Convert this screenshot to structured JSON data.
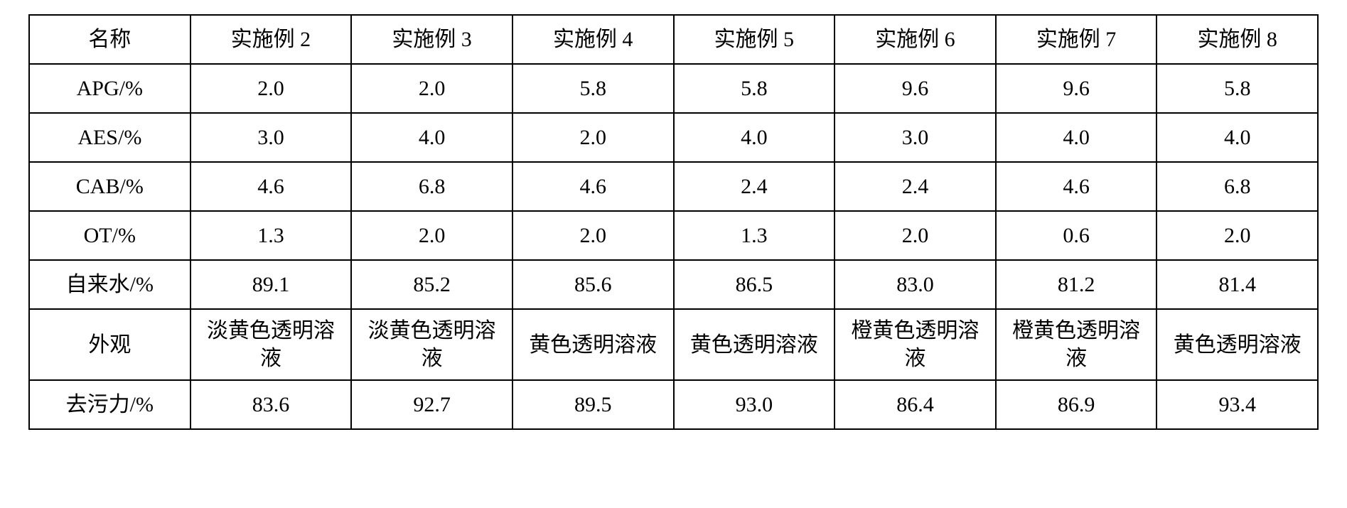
{
  "table": {
    "type": "table",
    "background_color": "#ffffff",
    "border_color": "#000000",
    "border_width": 2,
    "font_family": "SimSun",
    "font_size_pt": 22,
    "text_color": "#000000",
    "cell_align": "center",
    "column_count": 8,
    "columns": [
      "名称",
      "实施例 2",
      "实施例 3",
      "实施例 4",
      "实施例 5",
      "实施例 6",
      "实施例 7",
      "实施例 8"
    ],
    "rows": [
      {
        "label": "APG/%",
        "values": [
          "2.0",
          "2.0",
          "5.8",
          "5.8",
          "9.6",
          "9.6",
          "5.8"
        ]
      },
      {
        "label": "AES/%",
        "values": [
          "3.0",
          "4.0",
          "2.0",
          "4.0",
          "3.0",
          "4.0",
          "4.0"
        ]
      },
      {
        "label": "CAB/%",
        "values": [
          "4.6",
          "6.8",
          "4.6",
          "2.4",
          "2.4",
          "4.6",
          "6.8"
        ]
      },
      {
        "label": "OT/%",
        "values": [
          "1.3",
          "2.0",
          "2.0",
          "1.3",
          "2.0",
          "0.6",
          "2.0"
        ]
      },
      {
        "label": "自来水/%",
        "values": [
          "89.1",
          "85.2",
          "85.6",
          "86.5",
          "83.0",
          "81.2",
          "81.4"
        ]
      },
      {
        "label": "外观",
        "values": [
          "淡黄色透明溶液",
          "淡黄色透明溶液",
          "黄色透明溶液",
          "黄色透明溶液",
          "橙黄色透明溶液",
          "橙黄色透明溶液",
          "黄色透明溶液"
        ],
        "wrap": true
      },
      {
        "label": "去污力/%",
        "values": [
          "83.6",
          "92.7",
          "89.5",
          "93.0",
          "86.4",
          "86.9",
          "93.4"
        ]
      }
    ]
  }
}
